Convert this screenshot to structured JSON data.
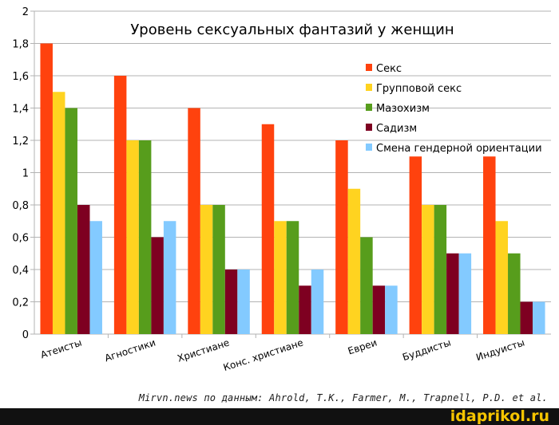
{
  "chart_data": {
    "type": "bar",
    "title": "Уровень сексуальных фантазий у женщин",
    "xlabel": "",
    "ylabel": "",
    "ylim": [
      0,
      2
    ],
    "y_ticks": [
      "0",
      "0,2",
      "0,4",
      "0,6",
      "0,8",
      "1",
      "1,2",
      "1,4",
      "1,6",
      "1,8",
      "2"
    ],
    "grid": true,
    "legend_position": "top-right",
    "categories": [
      "Атеисты",
      "Агностики",
      "Христиане",
      "Конс. христиане",
      "Евреи",
      "Буддисты",
      "Индуисты"
    ],
    "series": [
      {
        "name": "Секс",
        "color": "#ff420e",
        "values": [
          1.8,
          1.6,
          1.4,
          1.3,
          1.2,
          1.1,
          1.1
        ]
      },
      {
        "name": "Групповой секс",
        "color": "#ffd320",
        "values": [
          1.5,
          1.2,
          0.8,
          0.7,
          0.9,
          0.8,
          0.7
        ]
      },
      {
        "name": "Мазохизм",
        "color": "#579d1c",
        "values": [
          1.4,
          1.2,
          0.8,
          0.7,
          0.6,
          0.8,
          0.5
        ]
      },
      {
        "name": "Садизм",
        "color": "#7e0021",
        "values": [
          0.8,
          0.6,
          0.4,
          0.3,
          0.3,
          0.5,
          0.2
        ]
      },
      {
        "name": "Смена гендерной ориентации",
        "color": "#83caff",
        "values": [
          0.7,
          0.7,
          0.4,
          0.4,
          0.3,
          0.5,
          0.2
        ]
      }
    ]
  },
  "credit": "Mirvn.news по данным: Ahrold, T.K., Farmer, M., Trapnell, P.D. et al.",
  "watermark": "idaprikol.ru"
}
